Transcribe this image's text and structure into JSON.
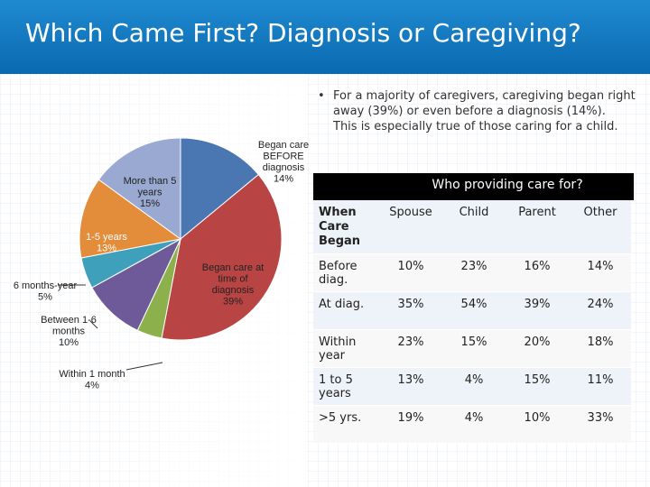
{
  "header": {
    "title": "Which Came First? Diagnosis or Caregiving?"
  },
  "bullet": {
    "marker": "•",
    "line1": "For a majority of caregivers, caregiving began right away (39%) or even before a diagnosis (14%).",
    "line2": "This is especially true of those caring for a child."
  },
  "table": {
    "banner": "Who providing care for?",
    "columns": [
      "When Care Began",
      "Spouse",
      "Child",
      "Parent",
      "Other"
    ],
    "rows": [
      [
        "Before diag.",
        "10%",
        "23%",
        "16%",
        "14%"
      ],
      [
        "At diag.",
        "35%",
        "54%",
        "39%",
        "24%"
      ],
      [
        "Within year",
        "23%",
        "15%",
        "20%",
        "18%"
      ],
      [
        "1 to 5 years",
        "13%",
        "4%",
        "15%",
        "11%"
      ],
      [
        ">5 yrs.",
        "19%",
        "4%",
        "10%",
        "33%"
      ]
    ]
  },
  "chart_data": {
    "type": "pie",
    "title": "",
    "slices": [
      {
        "label": "Began care BEFORE diagnosis 14%",
        "value": 14,
        "color": "#4a76b2"
      },
      {
        "label": "Began care at time of diagnosis 39%",
        "value": 39,
        "color": "#b84543"
      },
      {
        "label": "Within 1 month 4%",
        "value": 4,
        "color": "#8cb04c"
      },
      {
        "label": "Between 1-6 months 10%",
        "value": 10,
        "color": "#6e5a98"
      },
      {
        "label": "6 months-year 5%",
        "value": 5,
        "color": "#3fa0bb"
      },
      {
        "label": "1-5 years 13%",
        "value": 13,
        "color": "#e38c3a"
      },
      {
        "label": "More than 5 years 15%",
        "value": 15,
        "color": "#9aa9d1"
      }
    ],
    "label_lines": {
      "before": [
        "Began care",
        "BEFORE",
        "diagnosis",
        "14%"
      ],
      "at": [
        "Began care at",
        "time of",
        "diagnosis",
        "39%"
      ],
      "within1": [
        "Within 1 month",
        "4%"
      ],
      "between": [
        "Between 1-6",
        "months",
        "10%"
      ],
      "sixmo": [
        "6 months-year",
        "5%"
      ],
      "oneto5": [
        "1-5 years",
        "13%"
      ],
      "more5": [
        "More than 5",
        "years",
        "15%"
      ]
    }
  }
}
